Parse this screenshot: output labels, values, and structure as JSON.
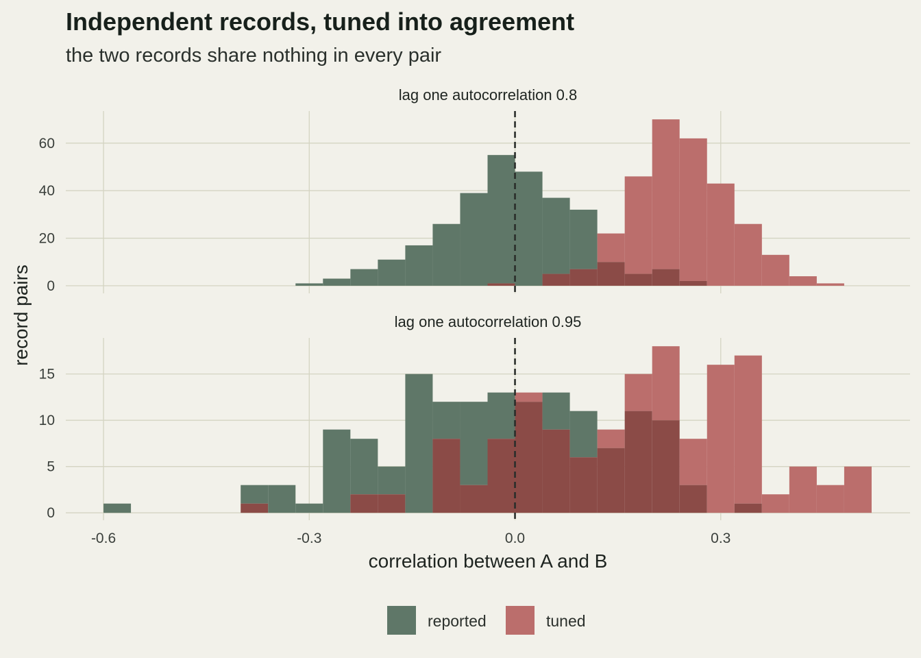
{
  "chart_data": {
    "type": "bar",
    "title": "Independent records, tuned into agreement",
    "subtitle": "the two records share nothing in every pair",
    "xlabel": "correlation between A and B",
    "ylabel": "record pairs",
    "x_ticks": [
      "-0.6",
      "-0.3",
      "0.0",
      "0.3"
    ],
    "x_tick_values": [
      -0.6,
      -0.3,
      0.0,
      0.3
    ],
    "xlim": [
      -0.655,
      0.576
    ],
    "reference_line": 0.0,
    "bin_width": 0.04,
    "colors": {
      "reported": "#5f7768",
      "tuned": "#bb6e6c",
      "overlap": "#8b4b47"
    },
    "legend": {
      "position": "bottom",
      "entries": [
        {
          "key": "reported",
          "label": "reported",
          "color": "#5f7768"
        },
        {
          "key": "tuned",
          "label": "tuned",
          "color": "#bb6e6c"
        }
      ]
    },
    "panels": [
      {
        "strip": "lag one autocorrelation 0.8",
        "ylim": [
          -3.2,
          73.5
        ],
        "y_ticks": [
          0,
          20,
          40,
          60
        ],
        "series": [
          {
            "name": "reported",
            "bins": [
              {
                "x0": -0.32,
                "count": 1
              },
              {
                "x0": -0.28,
                "count": 3
              },
              {
                "x0": -0.24,
                "count": 7
              },
              {
                "x0": -0.2,
                "count": 11
              },
              {
                "x0": -0.16,
                "count": 17
              },
              {
                "x0": -0.12,
                "count": 26
              },
              {
                "x0": -0.08,
                "count": 39
              },
              {
                "x0": -0.04,
                "count": 55
              },
              {
                "x0": 0.0,
                "count": 48
              },
              {
                "x0": 0.04,
                "count": 37
              },
              {
                "x0": 0.08,
                "count": 32
              },
              {
                "x0": 0.12,
                "count": 10
              },
              {
                "x0": 0.16,
                "count": 5
              },
              {
                "x0": 0.2,
                "count": 7
              },
              {
                "x0": 0.24,
                "count": 2
              }
            ]
          },
          {
            "name": "tuned",
            "bins": [
              {
                "x0": -0.04,
                "count": 1
              },
              {
                "x0": 0.04,
                "count": 5
              },
              {
                "x0": 0.08,
                "count": 7
              },
              {
                "x0": 0.12,
                "count": 22
              },
              {
                "x0": 0.16,
                "count": 46
              },
              {
                "x0": 0.2,
                "count": 70
              },
              {
                "x0": 0.24,
                "count": 62
              },
              {
                "x0": 0.28,
                "count": 43
              },
              {
                "x0": 0.32,
                "count": 26
              },
              {
                "x0": 0.36,
                "count": 13
              },
              {
                "x0": 0.4,
                "count": 4
              },
              {
                "x0": 0.44,
                "count": 1
              }
            ]
          }
        ]
      },
      {
        "strip": "lag one autocorrelation 0.95",
        "ylim": [
          -0.8,
          18.9
        ],
        "y_ticks": [
          0,
          5,
          10,
          15
        ],
        "series": [
          {
            "name": "reported",
            "bins": [
              {
                "x0": -0.6,
                "count": 1
              },
              {
                "x0": -0.4,
                "count": 3
              },
              {
                "x0": -0.36,
                "count": 3
              },
              {
                "x0": -0.32,
                "count": 1
              },
              {
                "x0": -0.28,
                "count": 9
              },
              {
                "x0": -0.24,
                "count": 8
              },
              {
                "x0": -0.2,
                "count": 5
              },
              {
                "x0": -0.16,
                "count": 15
              },
              {
                "x0": -0.12,
                "count": 12
              },
              {
                "x0": -0.08,
                "count": 12
              },
              {
                "x0": -0.04,
                "count": 13
              },
              {
                "x0": 0.0,
                "count": 12
              },
              {
                "x0": 0.04,
                "count": 13
              },
              {
                "x0": 0.08,
                "count": 11
              },
              {
                "x0": 0.12,
                "count": 7
              },
              {
                "x0": 0.16,
                "count": 11
              },
              {
                "x0": 0.2,
                "count": 10
              },
              {
                "x0": 0.24,
                "count": 3
              },
              {
                "x0": 0.32,
                "count": 1
              }
            ]
          },
          {
            "name": "tuned",
            "bins": [
              {
                "x0": -0.4,
                "count": 1
              },
              {
                "x0": -0.24,
                "count": 2
              },
              {
                "x0": -0.2,
                "count": 2
              },
              {
                "x0": -0.12,
                "count": 8
              },
              {
                "x0": -0.08,
                "count": 3
              },
              {
                "x0": -0.04,
                "count": 8
              },
              {
                "x0": 0.0,
                "count": 13
              },
              {
                "x0": 0.04,
                "count": 9
              },
              {
                "x0": 0.08,
                "count": 6
              },
              {
                "x0": 0.12,
                "count": 9
              },
              {
                "x0": 0.16,
                "count": 15
              },
              {
                "x0": 0.2,
                "count": 18
              },
              {
                "x0": 0.24,
                "count": 8
              },
              {
                "x0": 0.28,
                "count": 16
              },
              {
                "x0": 0.32,
                "count": 17
              },
              {
                "x0": 0.36,
                "count": 2
              },
              {
                "x0": 0.4,
                "count": 5
              },
              {
                "x0": 0.44,
                "count": 3
              },
              {
                "x0": 0.48,
                "count": 5
              }
            ]
          }
        ]
      }
    ]
  }
}
